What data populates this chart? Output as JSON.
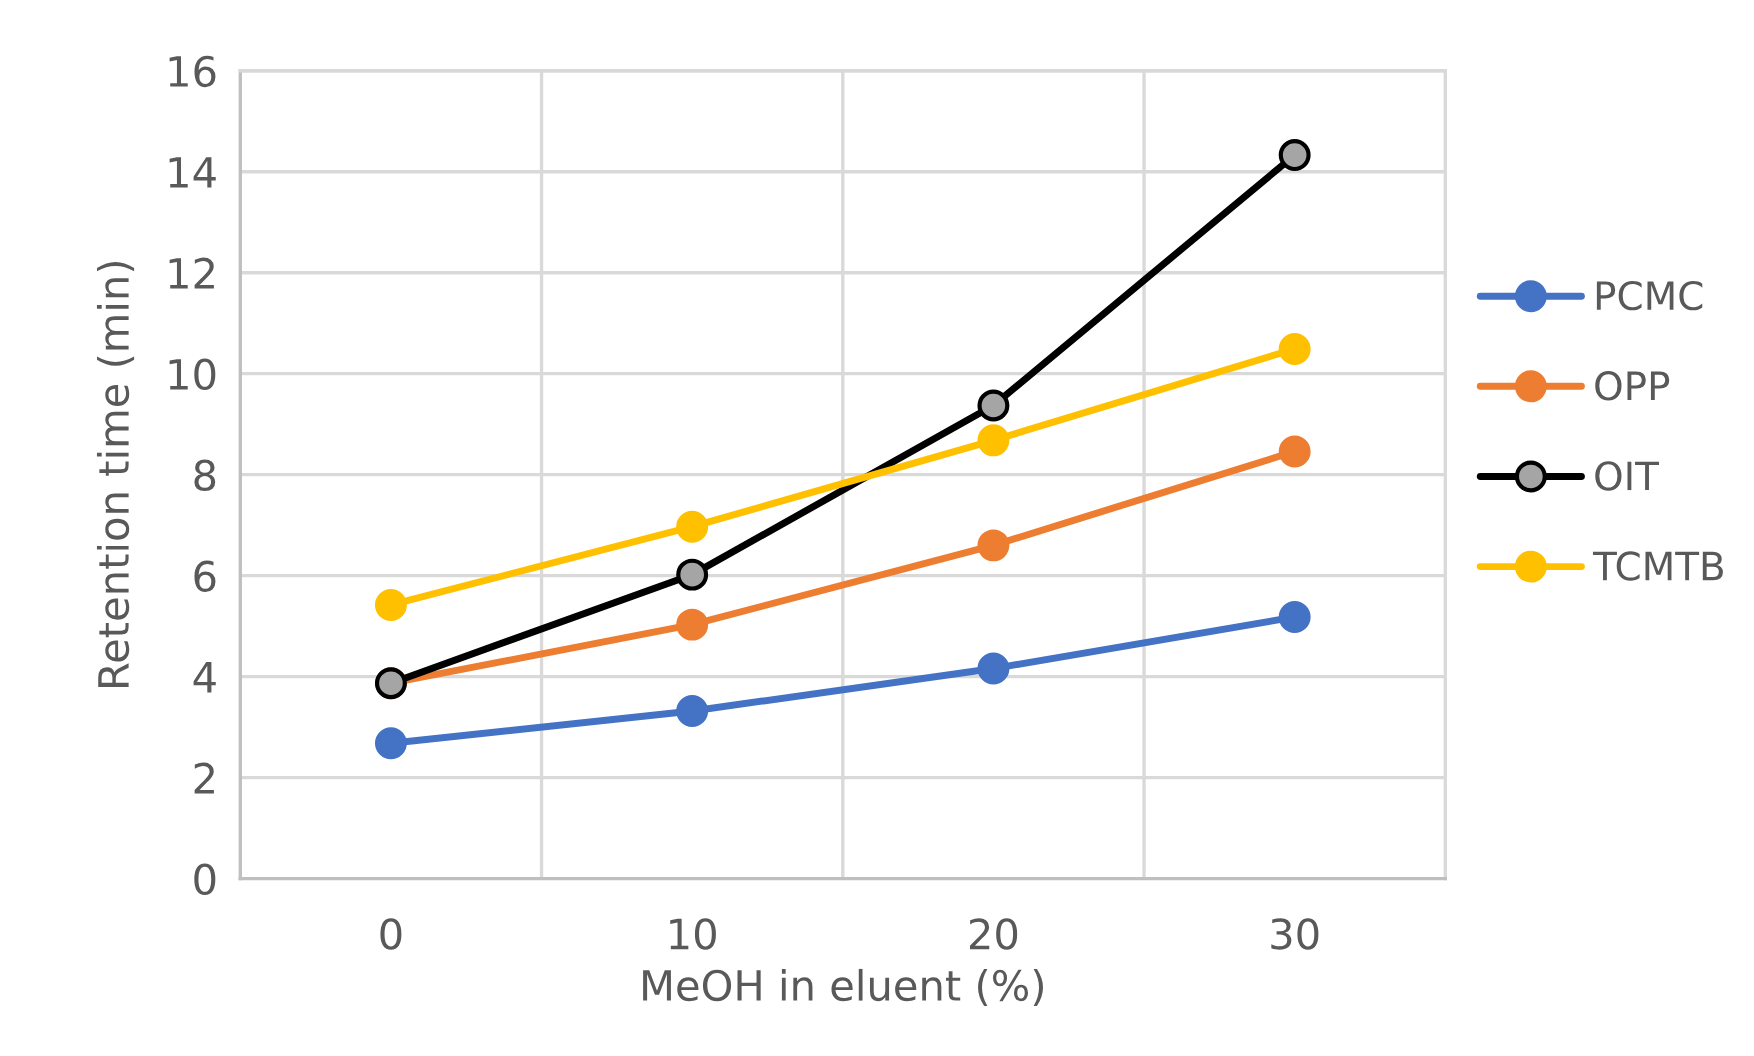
{
  "chart_data": {
    "type": "line",
    "xlabel": "MeOH in eluent (%)",
    "ylabel": "Retention time (min)",
    "categories": [
      "0",
      "10",
      "20",
      "30"
    ],
    "series": [
      {
        "name": "PCMC",
        "color": "#4472c4",
        "values": [
          2.68,
          3.32,
          4.16,
          5.18
        ]
      },
      {
        "name": "OPP",
        "color": "#ed7d31",
        "values": [
          3.87,
          5.03,
          6.6,
          8.46
        ]
      },
      {
        "name": "OIT",
        "color": "#000000",
        "values": [
          3.87,
          6.02,
          9.37,
          14.33
        ]
      },
      {
        "name": "TCMTB",
        "color": "#ffc000",
        "values": [
          5.42,
          6.97,
          8.68,
          10.49
        ]
      }
    ],
    "ylim": [
      0,
      16
    ],
    "yticks": [
      0,
      2,
      4,
      6,
      8,
      10,
      12,
      14,
      16
    ],
    "grid": true,
    "legend": "right",
    "marker": "circle",
    "line_style": "solid"
  }
}
